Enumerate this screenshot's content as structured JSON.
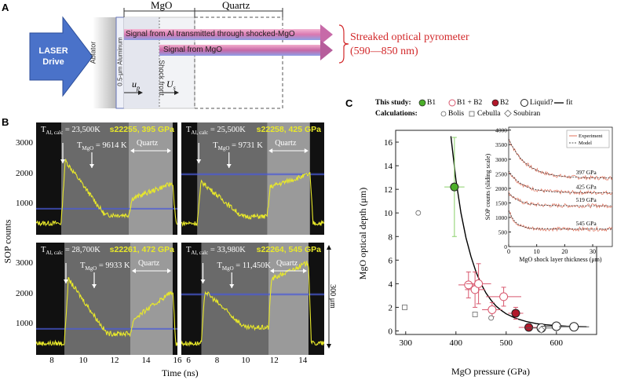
{
  "panelA": {
    "letter": "A",
    "laser": "LASER\nDrive",
    "ablator": "Ablator",
    "aluminum": "0.5-μm Aluminum",
    "shock_front": "Shock front",
    "mgo": "MgO",
    "quartz": "Quartz",
    "signal1": "Signal from Al transmitted through shocked-MgO",
    "signal2": "Signal from MgO",
    "sop_title": "Streaked optical pyrometer",
    "sop_range": "(590—850 nm)",
    "up_label": "u",
    "up_sub": "p",
    "us_label": "U",
    "us_sub": "s"
  },
  "panelB": {
    "letter": "B",
    "ylabel": "SOP counts",
    "xlabel": "Time (ns)",
    "scale_label": "300 μm",
    "quartz": "Quartz",
    "subplots": [
      {
        "shot": "s22255, 395 GPa",
        "tal_label": "T",
        "tal_sub": "Al, calc",
        "tal_val": "= 23,500K",
        "tmgo_label": "T",
        "tmgo_sub": "MgO",
        "tmgo_val": "= 9614 K",
        "yticks": [
          "3000",
          "2000",
          "1000"
        ],
        "xticks": []
      },
      {
        "shot": "s22258, 425 GPa",
        "tal_label": "T",
        "tal_sub": "Al, calc",
        "tal_val": "= 25,500K",
        "tmgo_label": "T",
        "tmgo_sub": "MgO",
        "tmgo_val": "= 9731 K",
        "yticks": [],
        "xticks": []
      },
      {
        "shot": "s22261, 472 GPa",
        "tal_label": "T",
        "tal_sub": "Al, calc",
        "tal_val": "= 28,700K",
        "tmgo_label": "T",
        "tmgo_sub": "MgO",
        "tmgo_val": "= 9933 K",
        "yticks": [
          "3000",
          "2000",
          "1000"
        ],
        "xticks": [
          "8",
          "10",
          "12",
          "14",
          "16"
        ]
      },
      {
        "shot": "s22264, 545 GPa",
        "tal_label": "T",
        "tal_sub": "Al, calc",
        "tal_val": "= 33,980K",
        "tmgo_label": "T",
        "tmgo_sub": "MgO",
        "tmgo_val": "= 11,450K",
        "yticks": [],
        "xticks": [
          "6",
          "8",
          "10",
          "12",
          "14"
        ]
      }
    ]
  },
  "panelC": {
    "letter": "C",
    "legend_this_study": "This study:",
    "legend_calcs": "Calculations:",
    "legend_items": [
      "B1",
      "B1 + B2",
      "B2",
      "Liquid?",
      "fit"
    ],
    "calc_items": [
      "Bolis",
      "Cebulla",
      "Soubiran"
    ],
    "colors": {
      "B1": "#4caf2a",
      "B1B2": "#d8586e",
      "B2": "#b2182b"
    },
    "ylabel": "MgO optical depth (μm)",
    "xlabel": "MgO pressure (GPa)",
    "yticks": [
      "0",
      "2",
      "4",
      "6",
      "8",
      "10",
      "12",
      "14",
      "16"
    ],
    "xticks": [
      "300",
      "400",
      "500",
      "600"
    ],
    "inset": {
      "ylabel": "SOP counts (sliding scale)",
      "xlabel": "MgO shock layer thickness (μm)",
      "yticks": [
        "0",
        "500",
        "1000",
        "1500",
        "2000",
        "2500",
        "3000",
        "3500",
        "4000"
      ],
      "xticks": [
        "0",
        "10",
        "20",
        "30"
      ],
      "legend": [
        "Experiment",
        "Model"
      ],
      "curve_labels": [
        "397 GPa",
        "425 GPa",
        "519 GPa",
        "545 GPa"
      ]
    }
  },
  "chart_data": {
    "type": "scatter",
    "xlabel": "MgO pressure (GPa)",
    "ylabel": "MgO optical depth (μm)",
    "xlim": [
      280,
      680
    ],
    "ylim": [
      -0.3,
      17
    ],
    "series": [
      {
        "name": "B1",
        "points": [
          {
            "x": 397,
            "y": 12.2,
            "xerr": 20,
            "yerr": 4.2
          }
        ]
      },
      {
        "name": "B1 + B2",
        "points": [
          {
            "x": 425,
            "y": 3.9,
            "xerr": 20,
            "yerr": 1.1
          },
          {
            "x": 438,
            "y": 3.5,
            "xerr": 20,
            "yerr": 1.5
          },
          {
            "x": 445,
            "y": 4.0,
            "xerr": 25,
            "yerr": 1.7
          },
          {
            "x": 472,
            "y": 1.8,
            "xerr": 20,
            "yerr": 0.6
          },
          {
            "x": 495,
            "y": 2.9,
            "xerr": 35,
            "yerr": 0.8
          }
        ]
      },
      {
        "name": "B2",
        "points": [
          {
            "x": 519,
            "y": 1.5,
            "xerr": 15,
            "yerr": 0.5
          },
          {
            "x": 545,
            "y": 0.3,
            "xerr": 20,
            "yerr": 0.2
          }
        ]
      },
      {
        "name": "Liquid?",
        "points": [
          {
            "x": 570,
            "y": 0.25,
            "xerr": 30,
            "yerr": 0.15
          },
          {
            "x": 600,
            "y": 0.4,
            "xerr": 30,
            "yerr": 0.2
          },
          {
            "x": 635,
            "y": 0.35,
            "xerr": 30,
            "yerr": 0.2
          }
        ]
      },
      {
        "name": "Bolis",
        "points": [
          {
            "x": 325,
            "y": 10.0
          },
          {
            "x": 470,
            "y": 1.1
          }
        ]
      },
      {
        "name": "Cebulla",
        "points": [
          {
            "x": 298,
            "y": 2.0
          },
          {
            "x": 438,
            "y": 1.4
          }
        ]
      },
      {
        "name": "Soubiran",
        "points": [
          {
            "x": 570,
            "y": 0.1
          }
        ]
      }
    ],
    "fit": {
      "name": "fit",
      "x": [
        390,
        400,
        410,
        420,
        430,
        440,
        450,
        460,
        470,
        480,
        490,
        500,
        520,
        540,
        560,
        580,
        600,
        620,
        640,
        660
      ],
      "y": [
        16.5,
        12.8,
        10.0,
        7.9,
        6.3,
        5.0,
        4.0,
        3.2,
        2.6,
        2.1,
        1.75,
        1.45,
        1.05,
        0.8,
        0.62,
        0.52,
        0.45,
        0.4,
        0.37,
        0.35
      ]
    }
  }
}
